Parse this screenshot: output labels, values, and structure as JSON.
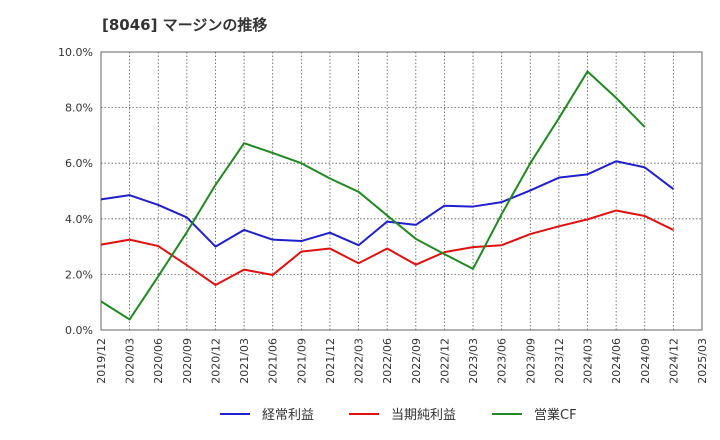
{
  "chart_data": {
    "type": "line",
    "title": "[8046]  マージンの推移",
    "xlabel": "",
    "ylabel": "",
    "ylim": [
      0,
      10
    ],
    "y_ticks": [
      "0.0%",
      "2.0%",
      "4.0%",
      "6.0%",
      "8.0%",
      "10.0%"
    ],
    "x_ticks": [
      "2019/12",
      "2020/03",
      "2020/06",
      "2020/09",
      "2020/12",
      "2021/03",
      "2021/06",
      "2021/09",
      "2021/12",
      "2022/03",
      "2022/06",
      "2022/09",
      "2022/12",
      "2023/03",
      "2023/06",
      "2023/09",
      "2023/12",
      "2024/03",
      "2024/06",
      "2024/09",
      "2024/12",
      "2025/03"
    ],
    "grid": true,
    "legend_position": "bottom",
    "series": [
      {
        "name": "経常利益",
        "color": "#1f1fcc",
        "values": [
          4.7,
          4.85,
          4.5,
          4.05,
          3.0,
          3.6,
          3.25,
          3.2,
          3.5,
          3.05,
          3.9,
          3.78,
          4.47,
          4.44,
          4.6,
          5.02,
          5.48,
          5.6,
          6.07,
          5.85,
          5.07,
          null
        ]
      },
      {
        "name": "当期純利益",
        "color": "#e01010",
        "values": [
          3.07,
          3.25,
          3.02,
          2.33,
          1.62,
          2.17,
          1.98,
          2.82,
          2.93,
          2.4,
          2.93,
          2.35,
          2.8,
          2.98,
          3.05,
          3.45,
          3.73,
          3.98,
          4.3,
          4.1,
          3.6,
          null
        ]
      },
      {
        "name": "営業CF",
        "color": "#228822",
        "values": [
          1.03,
          0.38,
          1.93,
          3.52,
          5.22,
          6.72,
          6.37,
          6.0,
          5.45,
          4.97,
          4.12,
          3.28,
          2.73,
          2.2,
          4.17,
          6.0,
          7.62,
          9.3,
          8.35,
          7.3,
          null,
          null
        ]
      }
    ]
  }
}
